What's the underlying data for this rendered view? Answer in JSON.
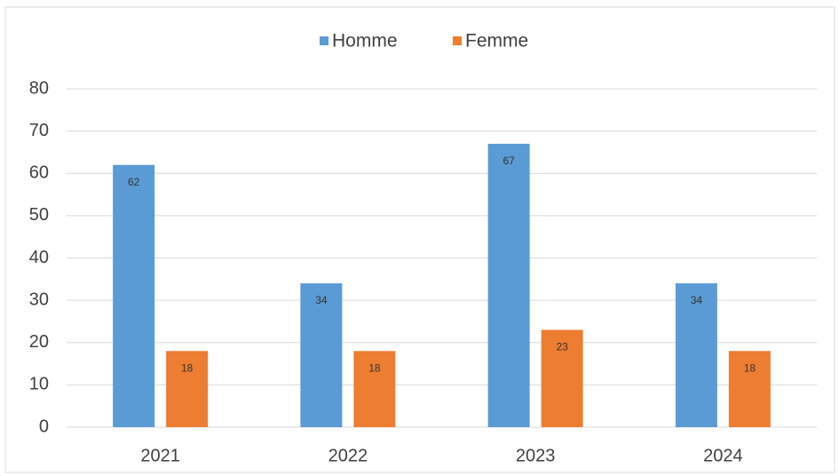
{
  "chart_data": {
    "type": "bar",
    "categories": [
      "2021",
      "2022",
      "2023",
      "2024"
    ],
    "series": [
      {
        "name": "Homme",
        "color": "#5b9bd5",
        "values": [
          62,
          34,
          67,
          34
        ]
      },
      {
        "name": "Femme",
        "color": "#ed7d31",
        "values": [
          18,
          18,
          23,
          18
        ]
      }
    ],
    "ylim": [
      0,
      80
    ],
    "yticks": [
      0,
      10,
      20,
      30,
      40,
      50,
      60,
      70,
      80
    ],
    "grid": true,
    "legend": "top",
    "data_labels": true
  }
}
